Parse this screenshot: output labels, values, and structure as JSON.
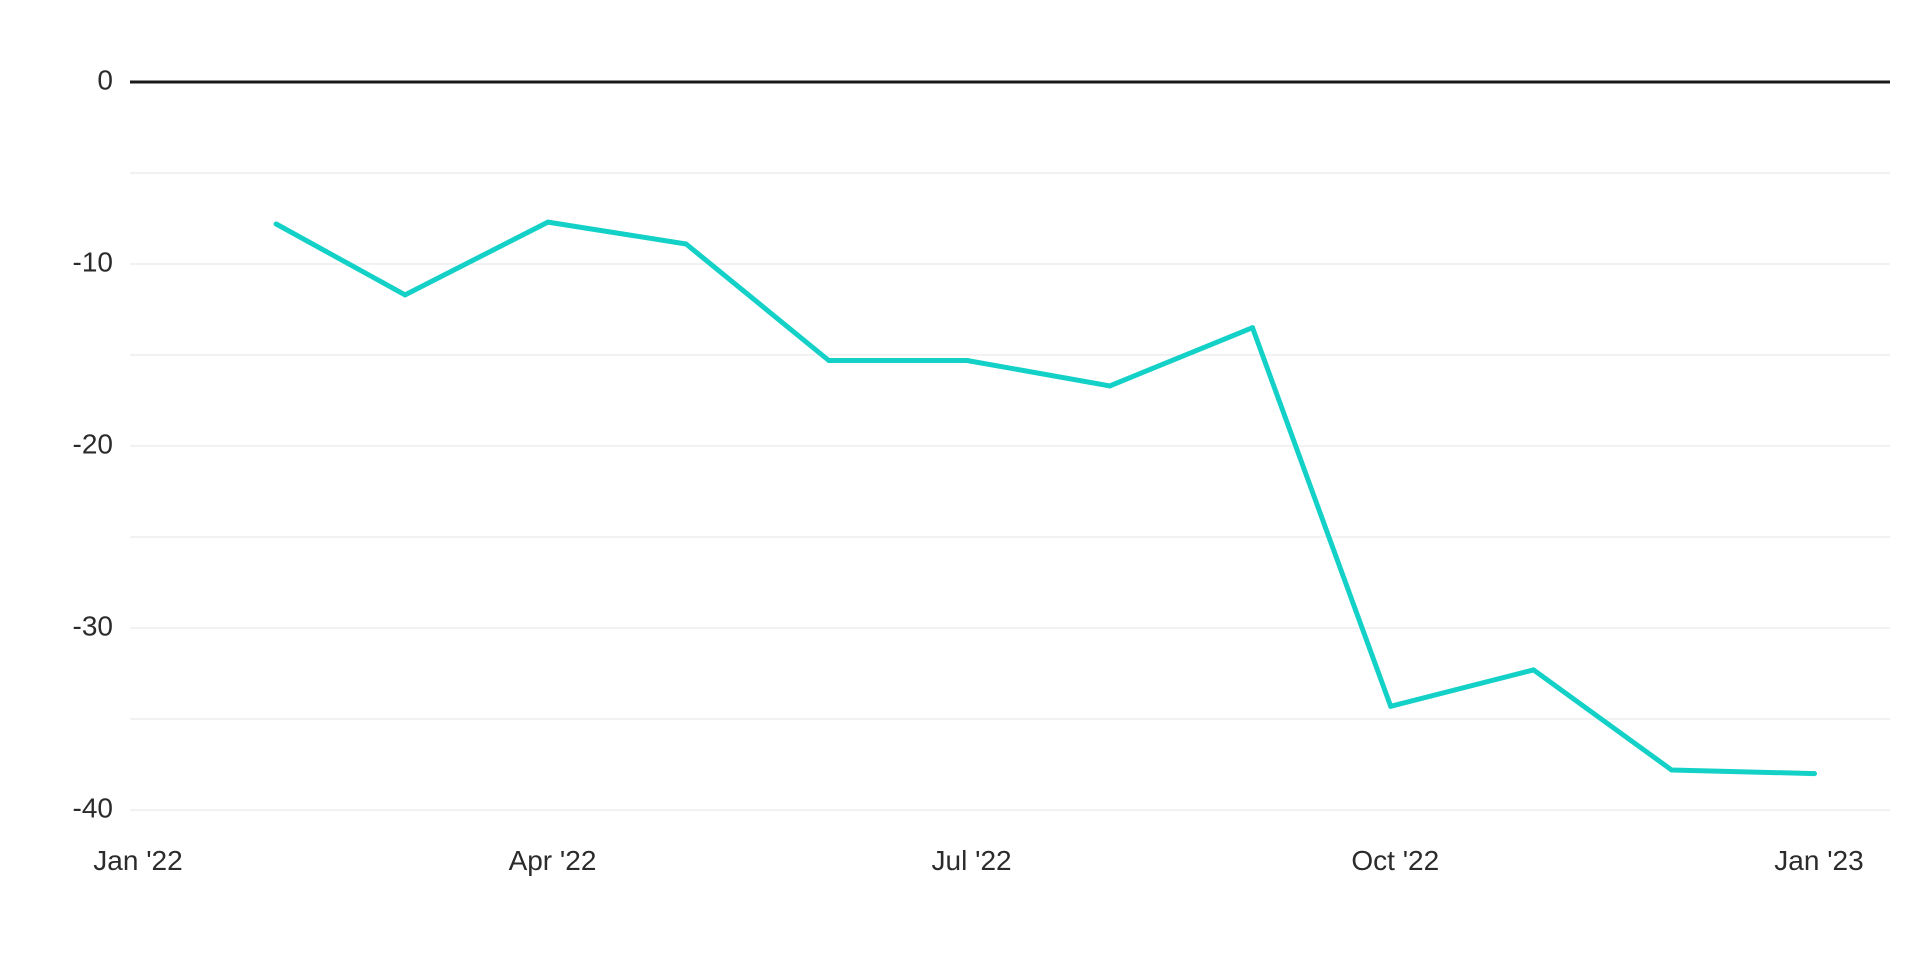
{
  "chart_data": {
    "type": "line",
    "title": "",
    "xlabel": "",
    "ylabel": "",
    "x_ticks": [
      {
        "date": "2022-01-01",
        "label": "Jan '22"
      },
      {
        "date": "2022-04-01",
        "label": "Apr '22"
      },
      {
        "date": "2022-07-01",
        "label": "Jul '22"
      },
      {
        "date": "2022-10-01",
        "label": "Oct '22"
      },
      {
        "date": "2023-01-01",
        "label": "Jan '23"
      }
    ],
    "y_ticks": [
      0,
      -10,
      -20,
      -30,
      -40
    ],
    "ylim": [
      -40,
      0
    ],
    "xlim": [
      "2022-01-01",
      "2023-01-01"
    ],
    "grid": true,
    "zero_line": true,
    "series": [
      {
        "color": "#14d1c8",
        "points": [
          {
            "x": "2022-01-31",
            "y": -7.8
          },
          {
            "x": "2022-02-28",
            "y": -11.7
          },
          {
            "x": "2022-03-31",
            "y": -7.7
          },
          {
            "x": "2022-04-30",
            "y": -8.9
          },
          {
            "x": "2022-05-31",
            "y": -15.3
          },
          {
            "x": "2022-06-30",
            "y": -15.3
          },
          {
            "x": "2022-07-31",
            "y": -16.7
          },
          {
            "x": "2022-08-31",
            "y": -13.5
          },
          {
            "x": "2022-09-30",
            "y": -34.3
          },
          {
            "x": "2022-10-31",
            "y": -32.3
          },
          {
            "x": "2022-11-30",
            "y": -37.8
          },
          {
            "x": "2022-12-31",
            "y": -38.0
          }
        ]
      }
    ]
  }
}
